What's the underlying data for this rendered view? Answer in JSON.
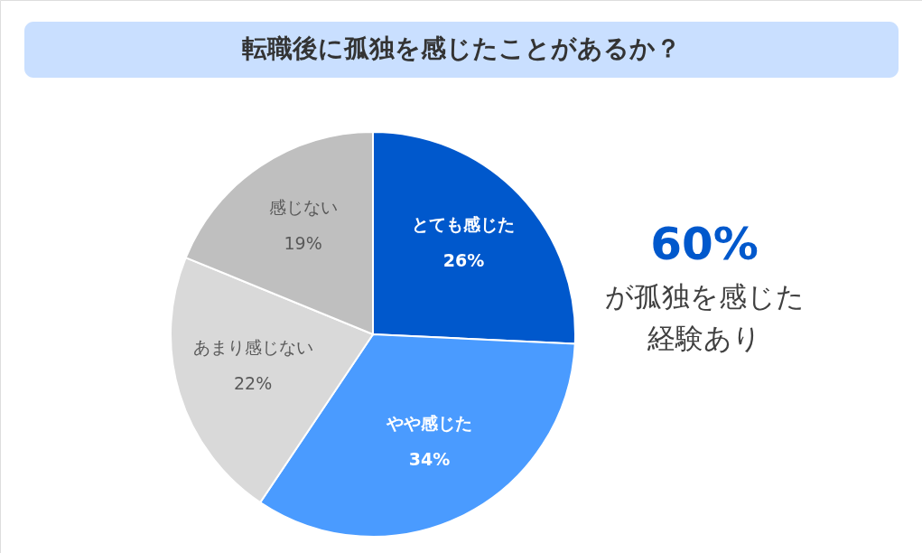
{
  "chart_data": {
    "type": "pie",
    "title": "転職後に孤独を感じたことがあるか？",
    "categories": [
      "とても感じた",
      "やや感じた",
      "あまり感じない",
      "感じない"
    ],
    "values": [
      26,
      34,
      22,
      19
    ],
    "colors": [
      "#0058cc",
      "#4a9bff",
      "#d9d9d9",
      "#bfbfbf"
    ],
    "value_labels": [
      "26%",
      "34%",
      "22%",
      "19%"
    ],
    "annotations": [
      "60%",
      "が孤独を感じた",
      "経験あり"
    ]
  }
}
